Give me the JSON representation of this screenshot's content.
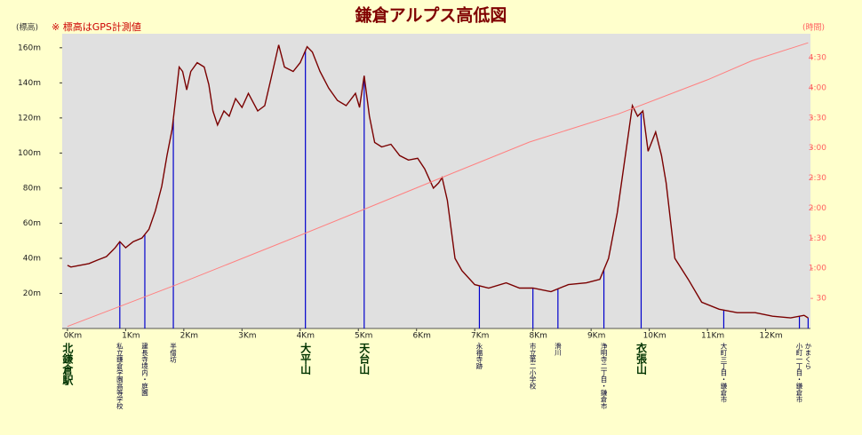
{
  "chart_data": {
    "type": "line",
    "title": "鎌倉アルプス高低図",
    "y_label": "(標高)",
    "note": "※ 標高はGPS計測値",
    "y2_label": "(時間)",
    "xlim": [
      -0.09,
      12.77
    ],
    "xticks": [
      {
        "value": 0,
        "label": "0Km"
      },
      {
        "value": 1,
        "label": "1Km"
      },
      {
        "value": 2,
        "label": "2Km"
      },
      {
        "value": 3,
        "label": "3Km"
      },
      {
        "value": 4,
        "label": "4Km"
      },
      {
        "value": 5,
        "label": "5Km"
      },
      {
        "value": 6,
        "label": "6Km"
      },
      {
        "value": 7,
        "label": "7Km"
      },
      {
        "value": 8,
        "label": "8Km"
      },
      {
        "value": 9,
        "label": "9Km"
      },
      {
        "value": 10,
        "label": "10Km"
      },
      {
        "value": 11,
        "label": "11Km"
      },
      {
        "value": 12,
        "label": "12Km"
      }
    ],
    "ylim": [
      0,
      168
    ],
    "yticks": [
      {
        "value": 20,
        "label": "20m"
      },
      {
        "value": 40,
        "label": "40m"
      },
      {
        "value": 60,
        "label": "60m"
      },
      {
        "value": 80,
        "label": "80m"
      },
      {
        "value": 100,
        "label": "100m"
      },
      {
        "value": 120,
        "label": "120m"
      },
      {
        "value": 140,
        "label": "140m"
      },
      {
        "value": 160,
        "label": "160m"
      }
    ],
    "y2lim": [
      0,
      294
    ],
    "y2ticks": [
      30,
      {
        "value": 60,
        "label": "1:00"
      },
      {
        "value": 90,
        "label": "1:30"
      },
      {
        "value": 120,
        "label": "2:00"
      },
      {
        "value": 150,
        "label": "2:30"
      },
      {
        "value": 180,
        "label": "3:00"
      },
      {
        "value": 210,
        "label": "3:30"
      },
      {
        "value": 240,
        "label": "4:00"
      },
      {
        "value": 270,
        "label": "4:30"
      }
    ],
    "series": [
      {
        "name": "標高",
        "color": "#7a0000",
        "x": [
          0,
          0.06,
          0.21,
          0.37,
          0.52,
          0.67,
          0.82,
          0.9,
          1.0,
          1.13,
          1.28,
          1.4,
          1.51,
          1.62,
          1.71,
          1.8,
          1.86,
          1.92,
          1.98,
          2.05,
          2.12,
          2.23,
          2.35,
          2.43,
          2.5,
          2.58,
          2.69,
          2.78,
          2.89,
          3.0,
          3.11,
          3.27,
          3.39,
          3.51,
          3.63,
          3.73,
          3.88,
          4.0,
          4.12,
          4.21,
          4.34,
          4.49,
          4.64,
          4.79,
          4.95,
          5.02,
          5.1,
          5.19,
          5.28,
          5.4,
          5.56,
          5.71,
          5.86,
          6.02,
          6.14,
          6.29,
          6.38,
          6.44,
          6.53,
          6.66,
          6.78,
          7.0,
          7.24,
          7.54,
          7.77,
          8.0,
          8.31,
          8.61,
          8.92,
          9.15,
          9.3,
          9.45,
          9.6,
          9.71,
          9.8,
          9.89,
          9.98,
          10.11,
          10.21,
          10.29,
          10.44,
          10.67,
          10.9,
          11.2,
          11.51,
          11.82,
          12.12,
          12.43,
          12.66,
          12.73
        ],
        "values": [
          36,
          35,
          36,
          37,
          39,
          41,
          46,
          49.5,
          46,
          49.5,
          51.5,
          56.5,
          67,
          81,
          98.5,
          113.6,
          131,
          149,
          146.5,
          136,
          146.5,
          151.5,
          149,
          139,
          124,
          116,
          124,
          121,
          131,
          126,
          134,
          124,
          127,
          144,
          161.6,
          149,
          146.5,
          151.5,
          160.6,
          157.6,
          146.5,
          137,
          130,
          127,
          134,
          126,
          144,
          121,
          106,
          103.5,
          105,
          98.5,
          96,
          97,
          91,
          80,
          83,
          86,
          73,
          40,
          33,
          25,
          23,
          26,
          23,
          23,
          21,
          25,
          26,
          28,
          40,
          66,
          101,
          127,
          121,
          124,
          101,
          112,
          98.5,
          83,
          40,
          28,
          15,
          11,
          9,
          9,
          7,
          6,
          7.5,
          6
        ]
      },
      {
        "name": "時間",
        "color": "#ff8080",
        "axis": "y2",
        "x": [
          0,
          1.89,
          4.0,
          5.02,
          6.41,
          7.94,
          9.47,
          11.0,
          11.76,
          12.73
        ],
        "values": [
          2,
          44,
          93,
          117,
          150,
          186,
          214,
          248,
          267,
          285
        ]
      }
    ],
    "markers": [
      {
        "label": "北鎌倉駅",
        "x": 0,
        "major": true,
        "line": false
      },
      {
        "label": "私立鎌倉学園高等学校",
        "x": 0.9,
        "major": false,
        "line": true
      },
      {
        "label": "建長寺境内・庭園",
        "x": 1.33,
        "major": false,
        "line": true
      },
      {
        "label": "半僧坊",
        "x": 1.82,
        "major": false,
        "line": true
      },
      {
        "label": "大平山",
        "x": 4.09,
        "major": true,
        "line": true
      },
      {
        "label": "天台山",
        "x": 5.1,
        "major": true,
        "line": true
      },
      {
        "label": "永福寺跡",
        "x": 7.08,
        "major": false,
        "line": true
      },
      {
        "label": "市立第二小学校",
        "x": 8.0,
        "major": false,
        "line": true
      },
      {
        "label": "滑川",
        "x": 8.43,
        "major": false,
        "line": true
      },
      {
        "label": "浄明寺二丁目・鎌倉市",
        "x": 9.22,
        "major": false,
        "line": true
      },
      {
        "label": "衣張山",
        "x": 9.86,
        "major": true,
        "line": true
      },
      {
        "label": "大町三丁目・鎌倉市",
        "x": 11.28,
        "major": false,
        "line": true
      },
      {
        "label": "小町一丁目・鎌倉市",
        "x": 12.58,
        "major": false,
        "line": true
      },
      {
        "label": "かまくら",
        "x": 12.73,
        "major": false,
        "line": true
      }
    ]
  }
}
